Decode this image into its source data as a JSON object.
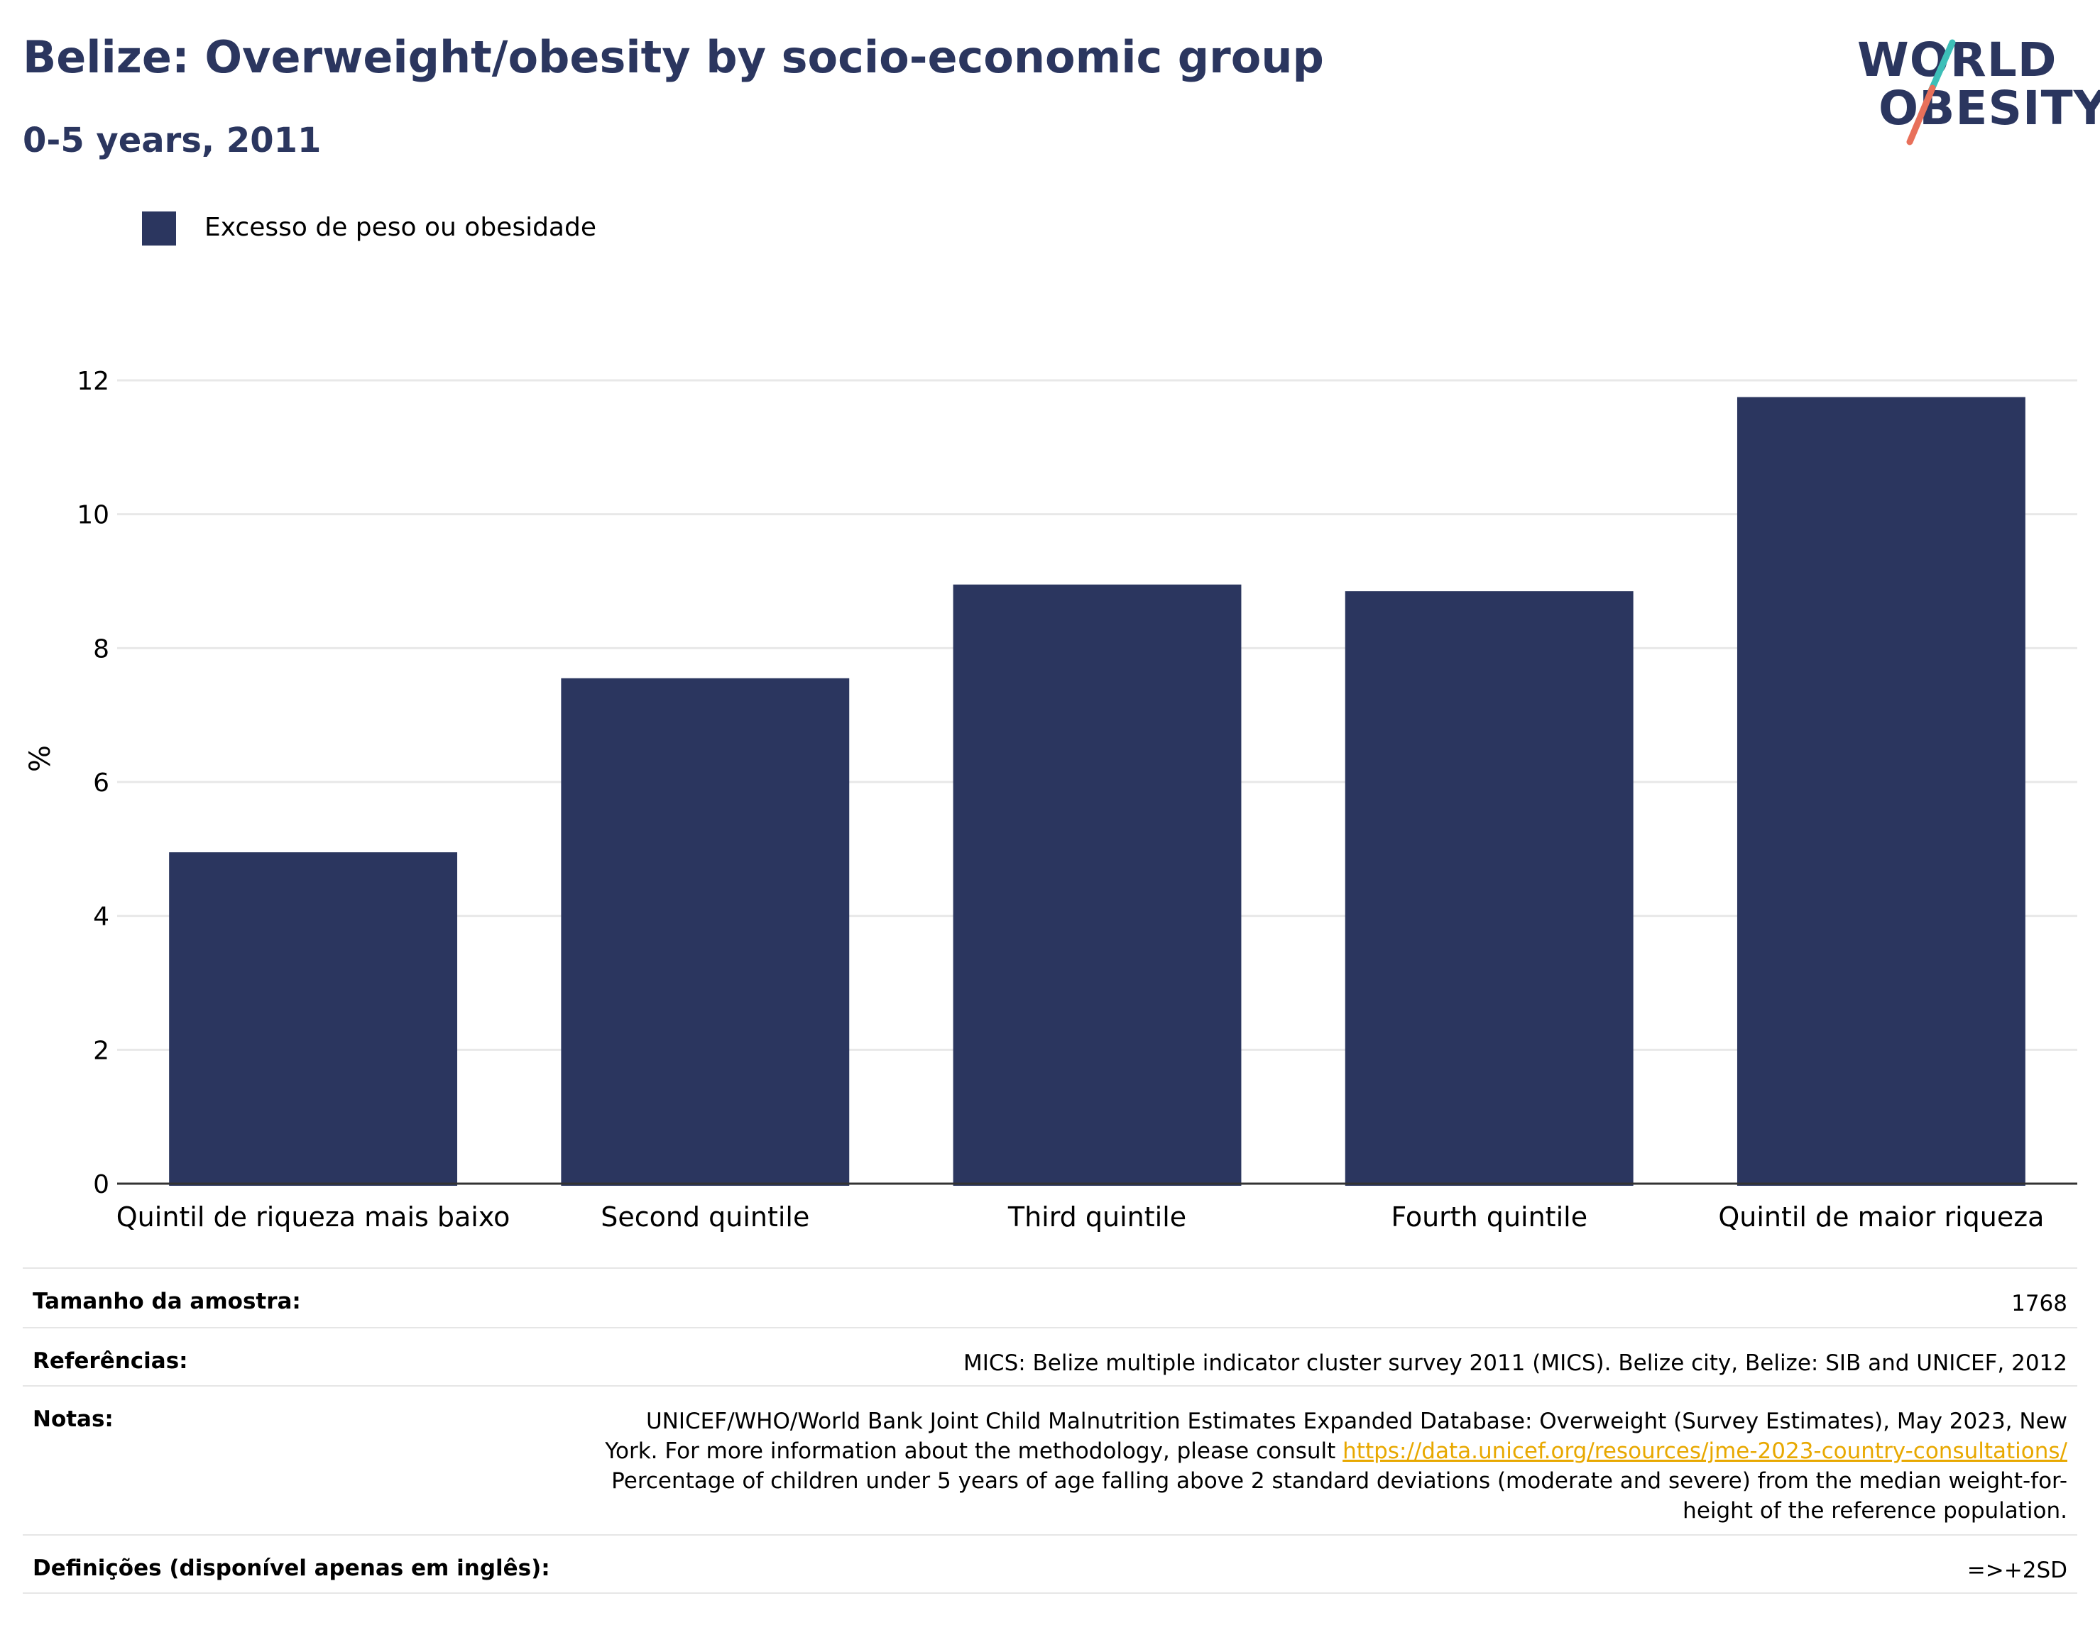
{
  "header": {
    "title": "Belize: Overweight/obesity by socio-economic group",
    "subtitle": "0-5 years, 2011"
  },
  "logo": {
    "line1": "WORLD",
    "line2": "OBESITY",
    "slash_top_color": "#3dbfb8",
    "slash_bottom_color": "#e8705a"
  },
  "legend": {
    "label": "Excesso de peso ou obesidade",
    "color": "#2b365f"
  },
  "chart_data": {
    "type": "bar",
    "categories": [
      "Quintil de riqueza mais baixo",
      "Second quintile",
      "Third quintile",
      "Fourth quintile",
      "Quintil de maior riqueza"
    ],
    "series": [
      {
        "name": "Excesso de peso ou obesidade",
        "values": [
          4.95,
          7.55,
          8.95,
          8.85,
          11.75
        ]
      }
    ],
    "ylabel": "%",
    "ylim": [
      0,
      12
    ],
    "yticks": [
      0,
      2,
      4,
      6,
      8,
      10,
      12
    ],
    "grid": true,
    "bar_color": "#2b365f",
    "legend_position": "top-left"
  },
  "meta": {
    "sample_label": "Tamanho da amostra:",
    "sample_value": "1768",
    "references_label": "Referências:",
    "references_value": "MICS: Belize multiple indicator cluster survey 2011 (MICS). Belize city, Belize: SIB and UNICEF, 2012",
    "notes_label": "Notas:",
    "notes_line1": "UNICEF/WHO/World Bank Joint Child Malnutrition Estimates Expanded Database: Overweight (Survey Estimates), May 2023, New",
    "notes_line2": "York. For more information about the methodology, please consult",
    "notes_link": "https://data.unicef.org/resources/jme-2023-country-consultations/",
    "notes_line3": "Percentage of children under 5 years of age falling above 2 standard deviations (moderate and severe) from the median weight-for-",
    "notes_line4": "height of the reference population.",
    "definitions_label": "Definições (disponível apenas em inglês):",
    "definitions_value": "=>+2SD"
  }
}
